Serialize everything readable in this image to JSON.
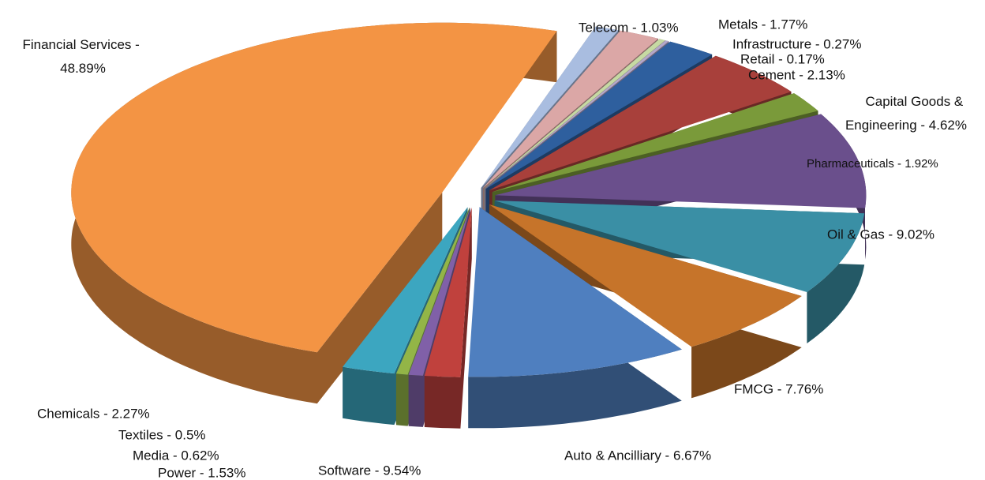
{
  "chart_data": {
    "type": "pie",
    "categories": [
      "Telecom - 1.03%",
      "Metals - 1.77%",
      "Infrastructure - 0.27%",
      "Retail - 0.17%",
      "Cement - 2.13%",
      "Capital Goods & Engineering - 4.62%",
      "Pharmaceuticals - 1.92%",
      "Oil & Gas  - 9.02%",
      "FMCG - 7.76%",
      "Auto & Ancilliary - 6.67%",
      "Software - 9.54%",
      "Power - 1.53%",
      "Media - 0.62%",
      "Textiles - 0.5%",
      "Chemicals - 2.27%",
      "Financial Services - 48.89%"
    ],
    "values": [
      1.03,
      1.77,
      0.27,
      0.17,
      2.13,
      4.62,
      1.92,
      9.02,
      7.76,
      6.67,
      9.54,
      1.53,
      0.62,
      0.5,
      2.27,
      48.89
    ],
    "colors": [
      "#a9bde0",
      "#dba7a6",
      "#c6d9a3",
      "#b4a7c9",
      "#2e5f9e",
      "#a8403b",
      "#7a9a3a",
      "#6a4f8c",
      "#3a8fa5",
      "#c6742a",
      "#4f7fbf",
      "#c0413d",
      "#8060a8",
      "#93b547",
      "#3ca6c0",
      "#f39444"
    ]
  }
}
